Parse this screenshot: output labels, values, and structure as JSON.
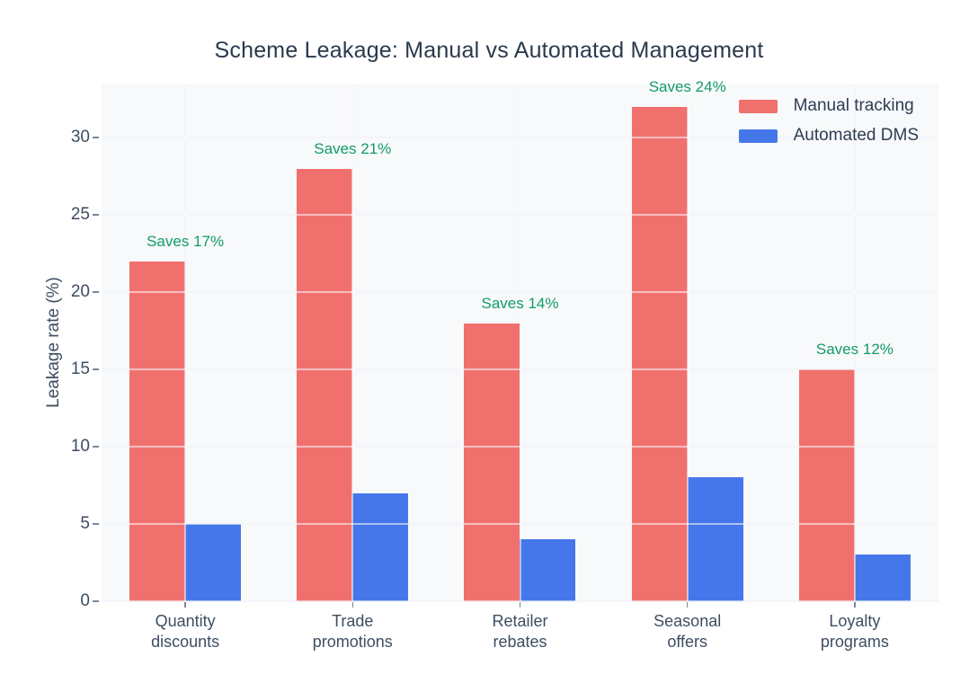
{
  "title": "Scheme Leakage: Manual vs Automated Management",
  "chart_data": {
    "type": "bar",
    "categories": [
      "Quantity discounts",
      "Trade promotions",
      "Retailer rebates",
      "Seasonal offers",
      "Loyalty programs"
    ],
    "series": [
      {
        "name": "Manual tracking",
        "color": "#F0706E",
        "values": [
          22,
          28,
          18,
          32,
          15
        ]
      },
      {
        "name": "Automated DMS",
        "color": "#4677EA",
        "values": [
          5,
          7,
          4,
          8,
          3
        ]
      }
    ],
    "savings_labels": [
      "Saves 17%",
      "Saves 21%",
      "Saves 14%",
      "Saves 24%",
      "Saves 12%"
    ],
    "annotation_color": "#119B67",
    "ylabel": "Leakage rate (%)",
    "yticks": [
      0,
      5,
      10,
      15,
      20,
      25,
      30
    ],
    "ylim": [
      0,
      33.5
    ],
    "grid": true,
    "legend_position": "top-right",
    "plot_bg_color": "#F8F9FB",
    "grid_color": "#E4E9F1"
  }
}
